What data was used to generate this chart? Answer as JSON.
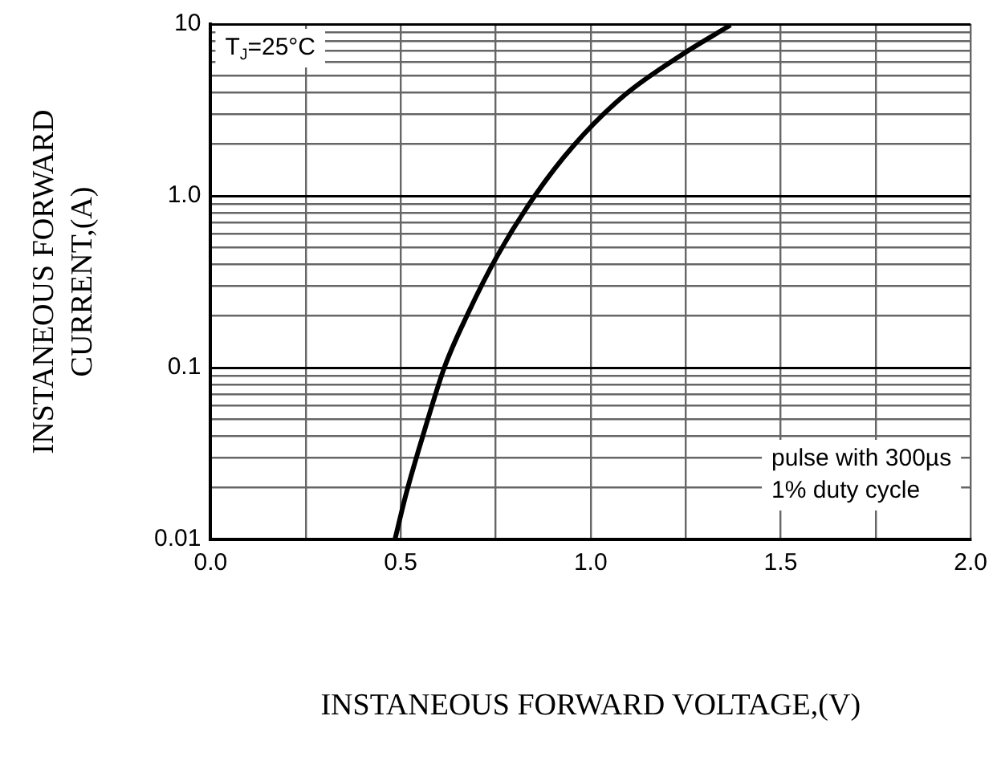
{
  "chart_data": {
    "type": "line",
    "xlabel": "INSTANEOUS FORWARD VOLTAGE,(V)",
    "ylabel": "INSTANEOUS FORWARD CURRENT,(A)",
    "log": "y",
    "grid": true,
    "marker": "none",
    "line_style": "solid",
    "xlim": [
      0,
      2
    ],
    "xticks": [
      {
        "value": 0,
        "label": "0.0"
      },
      {
        "value": 0.25,
        "label": null
      },
      {
        "value": 0.5,
        "label": "0.5"
      },
      {
        "value": 0.75,
        "label": null
      },
      {
        "value": 1,
        "label": "1.0"
      },
      {
        "value": 1.25,
        "label": null
      },
      {
        "value": 1.5,
        "label": "1.5"
      },
      {
        "value": 1.75,
        "label": null
      },
      {
        "value": 2,
        "label": "2.0"
      }
    ],
    "ylim": [
      0.01,
      10
    ],
    "yticks": [
      0.01,
      {
        "value": 0.02,
        "label": null
      },
      {
        "value": 0.03,
        "label": null
      },
      {
        "value": 0.04,
        "label": null
      },
      {
        "value": 0.05,
        "label": null
      },
      {
        "value": 0.06,
        "label": null
      },
      {
        "value": 0.07,
        "label": null
      },
      {
        "value": 0.08,
        "label": null
      },
      {
        "value": 0.09,
        "label": null
      },
      0.1,
      {
        "value": 0.2,
        "label": null
      },
      {
        "value": 0.3,
        "label": null
      },
      {
        "value": 0.4,
        "label": null
      },
      {
        "value": 0.5,
        "label": null
      },
      {
        "value": 0.6,
        "label": null
      },
      {
        "value": 0.7,
        "label": null
      },
      {
        "value": 0.8,
        "label": null
      },
      {
        "value": 0.9,
        "label": null
      },
      {
        "value": 1,
        "label": "1.0"
      },
      {
        "value": 2,
        "label": null
      },
      {
        "value": 3,
        "label": null
      },
      {
        "value": 4,
        "label": null
      },
      {
        "value": 5,
        "label": null
      },
      {
        "value": 6,
        "label": null
      },
      {
        "value": 7,
        "label": null
      },
      {
        "value": 8,
        "label": null
      },
      {
        "value": 9,
        "label": null
      },
      10
    ],
    "annotations": [
      "T$_{J}$=25°C",
      "pulse with 300µs\n1% duty cycle"
    ],
    "series": [
      {
        "color": "#000000",
        "x": [
          0.485,
          0.515,
          0.559,
          0.615,
          0.676,
          0.753,
          0.853,
          0.956,
          1.088,
          1.243,
          1.368
        ],
        "values": [
          0.01,
          0.0186,
          0.0404,
          0.1,
          0.204,
          0.442,
          1.0,
          1.97,
          3.84,
          6.7,
          9.86
        ]
      }
    ]
  }
}
